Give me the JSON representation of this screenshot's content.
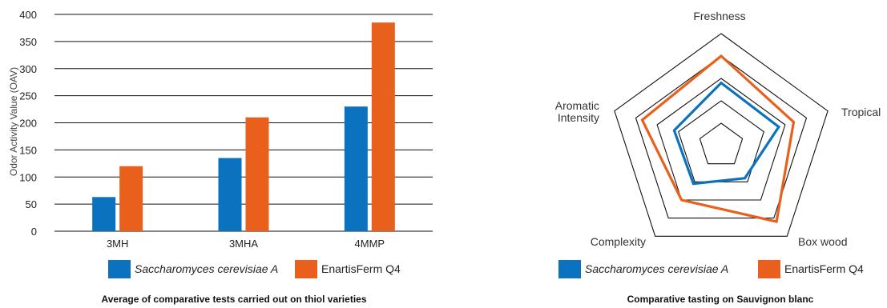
{
  "colors": {
    "blue": "#0a72bf",
    "orange": "#e8601c",
    "grid": "#111111",
    "web": "#111111"
  },
  "chart_data": [
    {
      "type": "bar",
      "ylabel": "Odor Activity Value (OAV)",
      "ylim": [
        0,
        400
      ],
      "yticks": [
        0,
        50,
        100,
        150,
        200,
        250,
        300,
        350,
        400
      ],
      "categories": [
        "3MH",
        "3MHA",
        "4MMP"
      ],
      "series": [
        {
          "name": "Saccharomyces cerevisiae A",
          "color": "#0a72bf",
          "italic": true,
          "values": [
            63,
            135,
            230
          ]
        },
        {
          "name": "EnartisFerm Q4",
          "color": "#e8601c",
          "italic": false,
          "values": [
            120,
            210,
            385
          ]
        }
      ],
      "grid": true,
      "caption": "Average of comparative tests carried out on thiol varieties"
    },
    {
      "type": "radar",
      "axes": [
        "Freshness",
        "Tropical",
        "Box wood",
        "Complexity",
        "Aromatic Intensity"
      ],
      "axis_label_lines": [
        [
          "Freshness"
        ],
        [
          "Tropical"
        ],
        [
          "Box wood"
        ],
        [
          "Complexity"
        ],
        [
          "Aromatic",
          "Intensity"
        ]
      ],
      "rlim": [
        0,
        5
      ],
      "rings": 5,
      "series": [
        {
          "name": "Saccharomyces cerevisiae A",
          "color": "#0a72bf",
          "italic": true,
          "values": [
            2.8,
            2.7,
            1.8,
            2.1,
            2.2
          ]
        },
        {
          "name": "EnartisFerm Q4",
          "color": "#e8601c",
          "italic": false,
          "values": [
            4.0,
            3.4,
            4.2,
            3.0,
            3.7
          ]
        }
      ],
      "caption": "Comparative tasting on Sauvignon blanc"
    }
  ]
}
